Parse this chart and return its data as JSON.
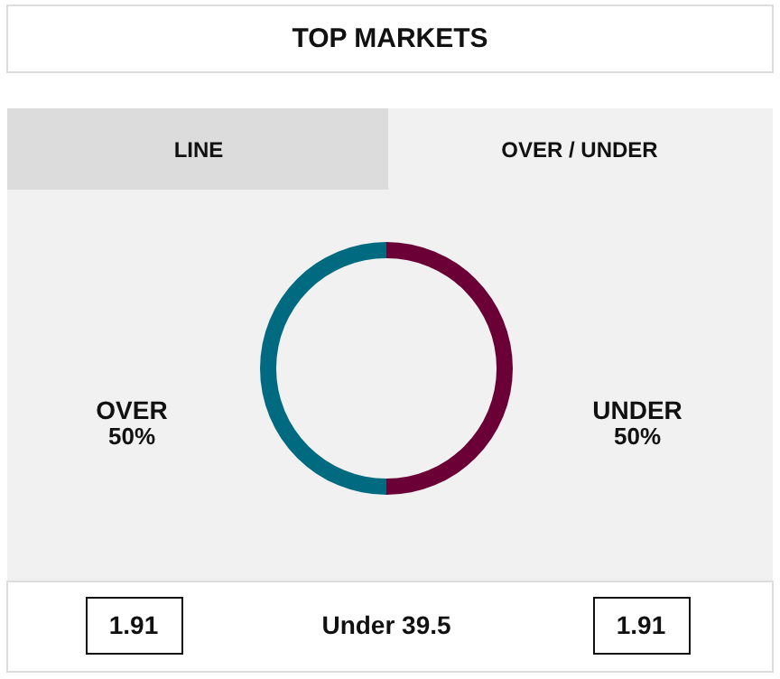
{
  "chart_data": {
    "type": "donut",
    "title": "TOP MARKETS",
    "categories": [
      "OVER",
      "UNDER"
    ],
    "values": [
      50,
      50
    ],
    "colors": [
      "#006a80",
      "#6b0036"
    ],
    "value_labels": [
      "50%",
      "50%"
    ],
    "annotations": [
      "LINE",
      "OVER / UNDER",
      "1.91",
      "Under 39.5",
      "1.91"
    ]
  }
}
